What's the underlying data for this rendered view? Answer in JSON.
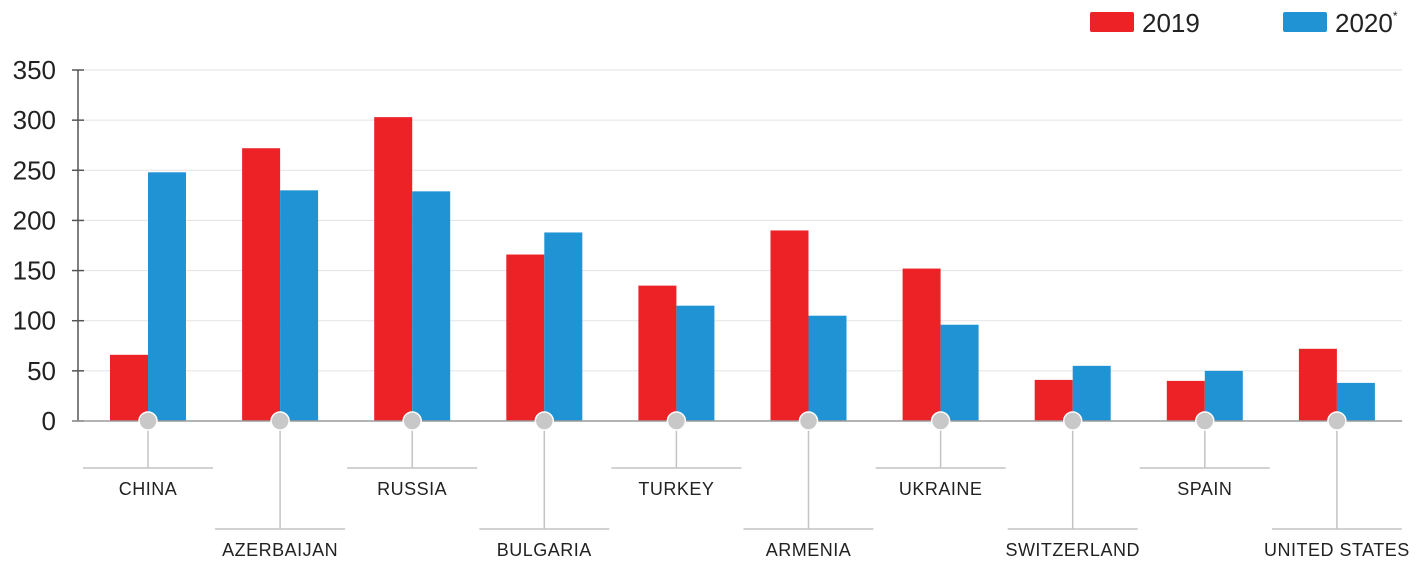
{
  "chart_data": {
    "type": "bar",
    "title": "",
    "xlabel": "",
    "ylabel": "",
    "ylim": [
      0,
      350
    ],
    "yticks": [
      0,
      50,
      100,
      150,
      200,
      250,
      300,
      350
    ],
    "grid": true,
    "legend_position": "top-right",
    "categories": [
      "CHINA",
      "AZERBAIJAN",
      "RUSSIA",
      "BULGARIA",
      "TURKEY",
      "ARMENIA",
      "UKRAINE",
      "SWITZERLAND",
      "SPAIN",
      "UNITED STATES"
    ],
    "series": [
      {
        "name": "2019",
        "color": "#ec2227",
        "values": [
          66,
          272,
          303,
          166,
          135,
          190,
          152,
          41,
          40,
          72
        ]
      },
      {
        "name": "2020",
        "name_superscript": "*",
        "color": "#1f93d3",
        "values": [
          248,
          230,
          229,
          188,
          115,
          105,
          96,
          55,
          50,
          38
        ]
      }
    ]
  }
}
